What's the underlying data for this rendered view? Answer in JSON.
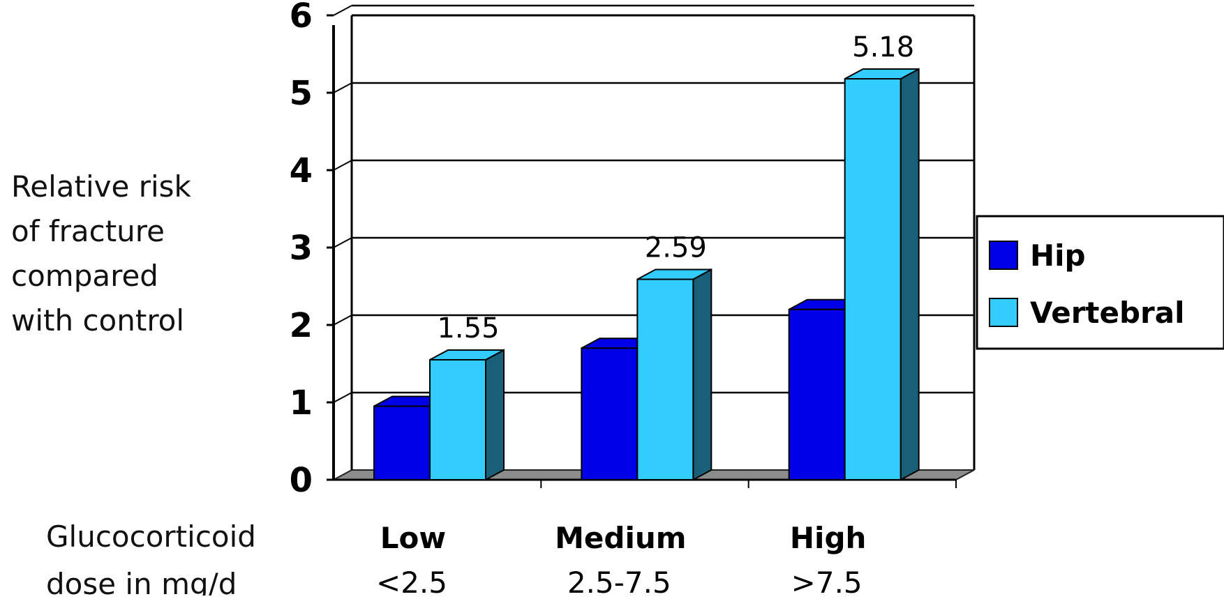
{
  "chart_data": {
    "type": "bar",
    "ylabel": [
      "Relative risk",
      "of fracture",
      "compared",
      "with control"
    ],
    "xlabel": [
      "Glucocorticoid",
      "dose in mg/d"
    ],
    "categories": [
      "Low",
      "Medium",
      "High"
    ],
    "category_subtitles": [
      "<2.5",
      "2.5-7.5",
      ">7.5"
    ],
    "series": [
      {
        "name": "Hip",
        "values": [
          0.95,
          1.7,
          2.2
        ],
        "color": "#0000e6",
        "side_color": "#000080"
      },
      {
        "name": "Vertebral",
        "values": [
          1.55,
          2.59,
          5.18
        ],
        "color": "#33ccff",
        "side_color": "#1a5f78"
      }
    ],
    "data_labels": {
      "Vertebral": [
        "1.55",
        "2.59",
        "5.18"
      ]
    },
    "ylim": [
      0,
      6
    ],
    "yticks": [
      "0",
      "1",
      "2",
      "3",
      "4",
      "5",
      "6"
    ],
    "grid": true,
    "legend_position": "right",
    "three_d": true
  }
}
